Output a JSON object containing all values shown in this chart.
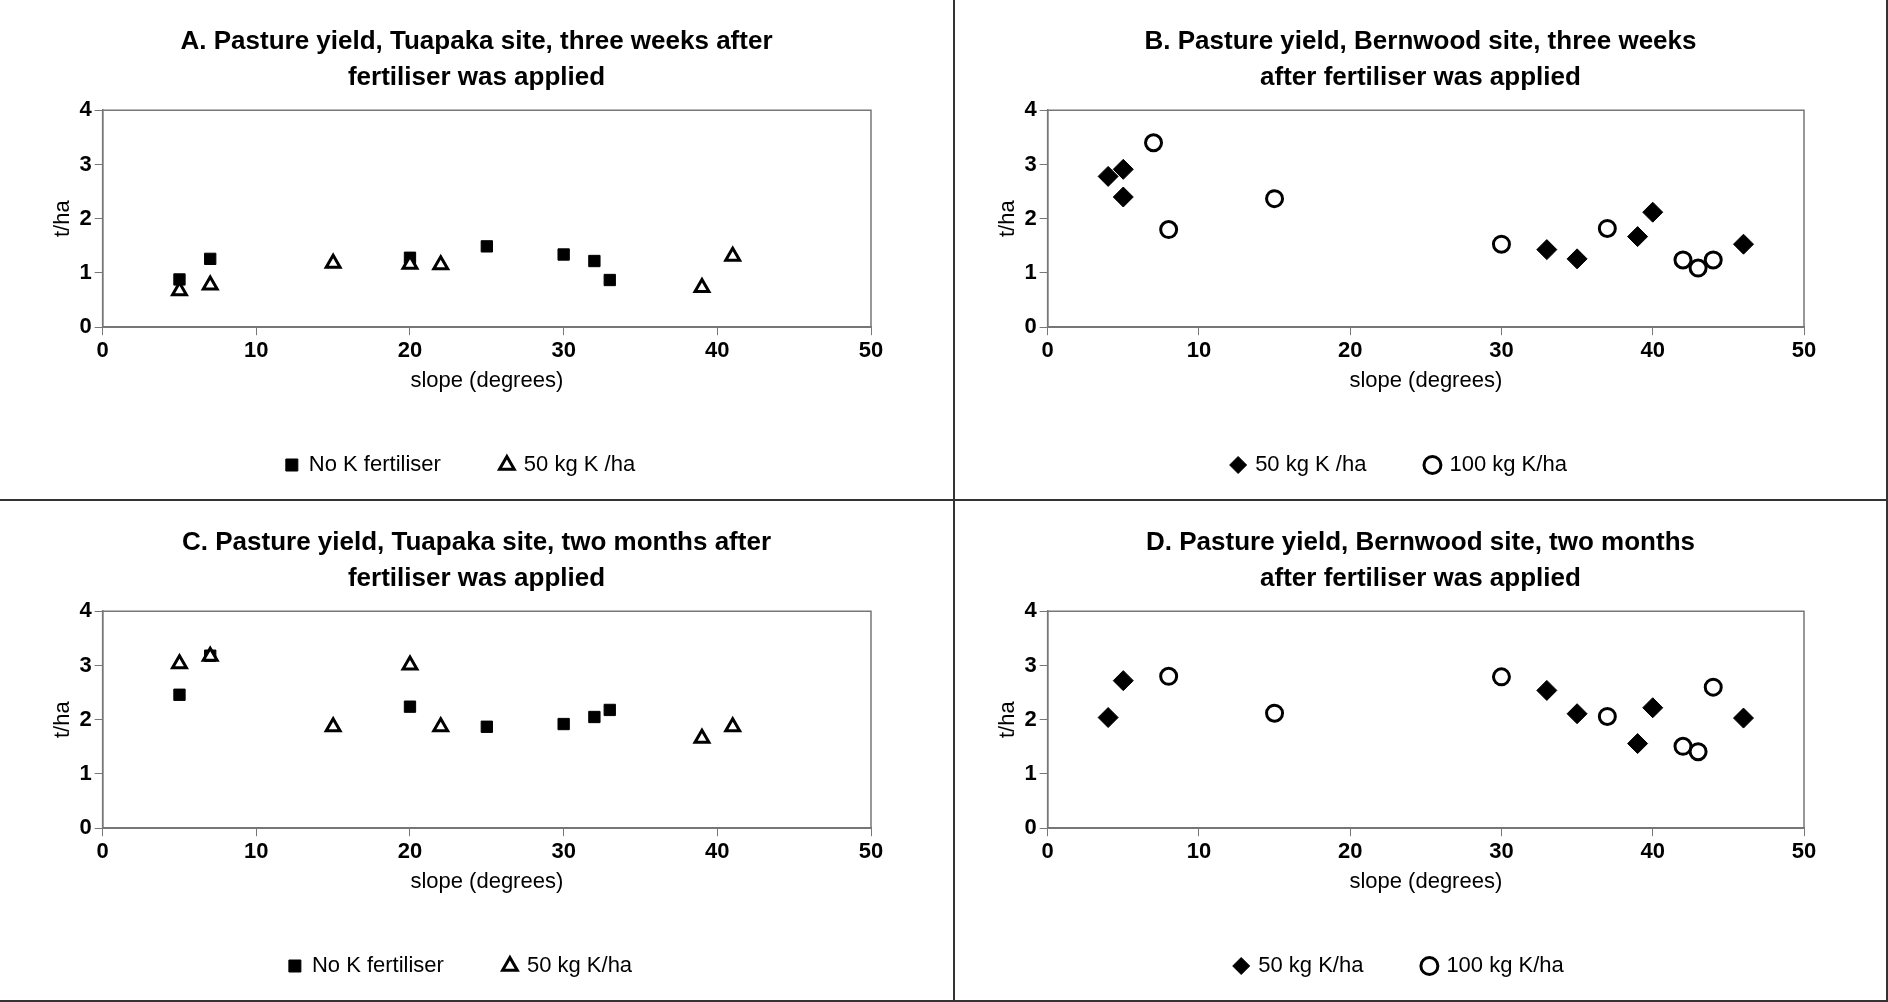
{
  "chart_data": [
    {
      "type": "scatter",
      "title": "A.  Pasture yield, Tuapaka site, three weeks after fertiliser was applied",
      "xlabel": "slope (degrees)",
      "ylabel": "t/ha",
      "xlim": [
        0,
        50
      ],
      "xticks": [
        0,
        10,
        20,
        30,
        40,
        50
      ],
      "ylim": [
        0,
        4
      ],
      "yticks": [
        0,
        1,
        2,
        3,
        4
      ],
      "grid": false,
      "legend": "bottom",
      "series": [
        {
          "name": "No K fertiliser",
          "color": "#000000",
          "marker": "square",
          "x": [
            5,
            7,
            20,
            25,
            30,
            32,
            33
          ],
          "values": [
            0.88,
            1.26,
            1.28,
            1.49,
            1.34,
            1.22,
            0.87
          ]
        },
        {
          "name": "50 kg K /ha",
          "color": "#000000",
          "marker": "triangle",
          "x": [
            5,
            7,
            15,
            20,
            22,
            39,
            41
          ],
          "values": [
            0.67,
            0.78,
            1.18,
            1.16,
            1.15,
            0.73,
            1.31
          ]
        }
      ]
    },
    {
      "type": "scatter",
      "title": "B.  Pasture yield, Bernwood site, three weeks after fertiliser was applied",
      "xlabel": "slope (degrees)",
      "ylabel": "t/ha",
      "xlim": [
        0,
        50
      ],
      "xticks": [
        0,
        10,
        20,
        30,
        40,
        50
      ],
      "ylim": [
        0,
        4
      ],
      "yticks": [
        0,
        1,
        2,
        3,
        4
      ],
      "grid": false,
      "legend": "bottom",
      "series": [
        {
          "name": "50 kg K /ha",
          "color": "#000000",
          "marker": "diamond",
          "x": [
            4,
            5,
            5,
            33,
            35,
            39,
            40,
            46
          ],
          "values": [
            2.78,
            2.91,
            2.4,
            1.43,
            1.26,
            1.67,
            2.12,
            1.53
          ]
        },
        {
          "name": "100 kg K/ha",
          "color": "#000000",
          "marker": "circle",
          "x": [
            7,
            8,
            15,
            30,
            37,
            42,
            43,
            44
          ],
          "values": [
            3.4,
            1.8,
            2.37,
            1.53,
            1.82,
            1.24,
            1.09,
            1.24
          ]
        }
      ]
    },
    {
      "type": "scatter",
      "title": "C.  Pasture yield, Tuapaka site, two months after fertiliser was applied",
      "xlabel": "slope (degrees)",
      "ylabel": "t/ha",
      "xlim": [
        0,
        50
      ],
      "xticks": [
        0,
        10,
        20,
        30,
        40,
        50
      ],
      "ylim": [
        0,
        4
      ],
      "yticks": [
        0,
        1,
        2,
        3,
        4
      ],
      "grid": false,
      "legend": "bottom",
      "series": [
        {
          "name": "No K fertiliser",
          "color": "#000000",
          "marker": "square",
          "x": [
            5,
            7,
            20,
            25,
            30,
            32,
            33
          ],
          "values": [
            2.46,
            3.18,
            2.24,
            1.87,
            1.92,
            2.05,
            2.18
          ]
        },
        {
          "name": "50 kg K/ha",
          "color": "#000000",
          "marker": "triangle",
          "x": [
            5,
            7,
            15,
            20,
            22,
            39,
            41
          ],
          "values": [
            3.03,
            3.17,
            1.87,
            3.01,
            1.87,
            1.66,
            1.87
          ]
        }
      ]
    },
    {
      "type": "scatter",
      "title": "D.  Pasture yield, Bernwood site, two months after fertiliser was applied",
      "xlabel": "slope (degrees)",
      "ylabel": "t/ha",
      "xlim": [
        0,
        50
      ],
      "xticks": [
        0,
        10,
        20,
        30,
        40,
        50
      ],
      "ylim": [
        0,
        4
      ],
      "yticks": [
        0,
        1,
        2,
        3,
        4
      ],
      "grid": false,
      "legend": "bottom",
      "series": [
        {
          "name": "50 kg K/ha",
          "color": "#000000",
          "marker": "diamond",
          "x": [
            4,
            5,
            33,
            35,
            39,
            40,
            46
          ],
          "values": [
            2.04,
            2.72,
            2.54,
            2.11,
            1.56,
            2.22,
            2.03
          ]
        },
        {
          "name": "100 kg K/ha",
          "color": "#000000",
          "marker": "circle",
          "x": [
            8,
            15,
            30,
            37,
            42,
            43,
            44
          ],
          "values": [
            2.8,
            2.12,
            2.79,
            2.06,
            1.51,
            1.41,
            2.6
          ]
        }
      ]
    }
  ]
}
